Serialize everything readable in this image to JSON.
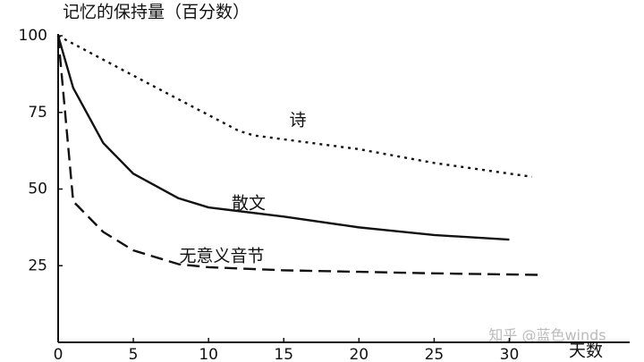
{
  "chart_data": {
    "type": "line",
    "y_label": "记忆的保持量（百分数）",
    "x_label": "天数",
    "watermark": "知乎 @蓝色winds",
    "xlim": [
      0,
      38
    ],
    "ylim": [
      0,
      100
    ],
    "xticks": [
      0,
      5,
      10,
      15,
      20,
      25,
      30
    ],
    "yticks": [
      25,
      50,
      75,
      100
    ],
    "grid": false,
    "series": [
      {
        "name": "诗",
        "color": "#111111",
        "dash": "dotted",
        "x": [
          0,
          5,
          12,
          13,
          20,
          25,
          31.5
        ],
        "values": [
          100,
          87,
          69,
          67.5,
          63,
          58.5,
          54
        ]
      },
      {
        "name": "散文",
        "color": "#111111",
        "dash": "solid",
        "x": [
          0,
          1,
          3,
          5,
          8,
          10,
          15,
          20,
          25,
          30
        ],
        "values": [
          100,
          83,
          65,
          55,
          47,
          44,
          41,
          37.5,
          35,
          33.5
        ]
      },
      {
        "name": "无意义音节",
        "color": "#111111",
        "dash": "dashed",
        "x": [
          0,
          1,
          2,
          3,
          5,
          8,
          10,
          15,
          20,
          25,
          32
        ],
        "values": [
          100,
          46,
          41,
          36,
          30,
          25.5,
          24.5,
          23.5,
          23,
          22.5,
          22
        ]
      }
    ]
  }
}
